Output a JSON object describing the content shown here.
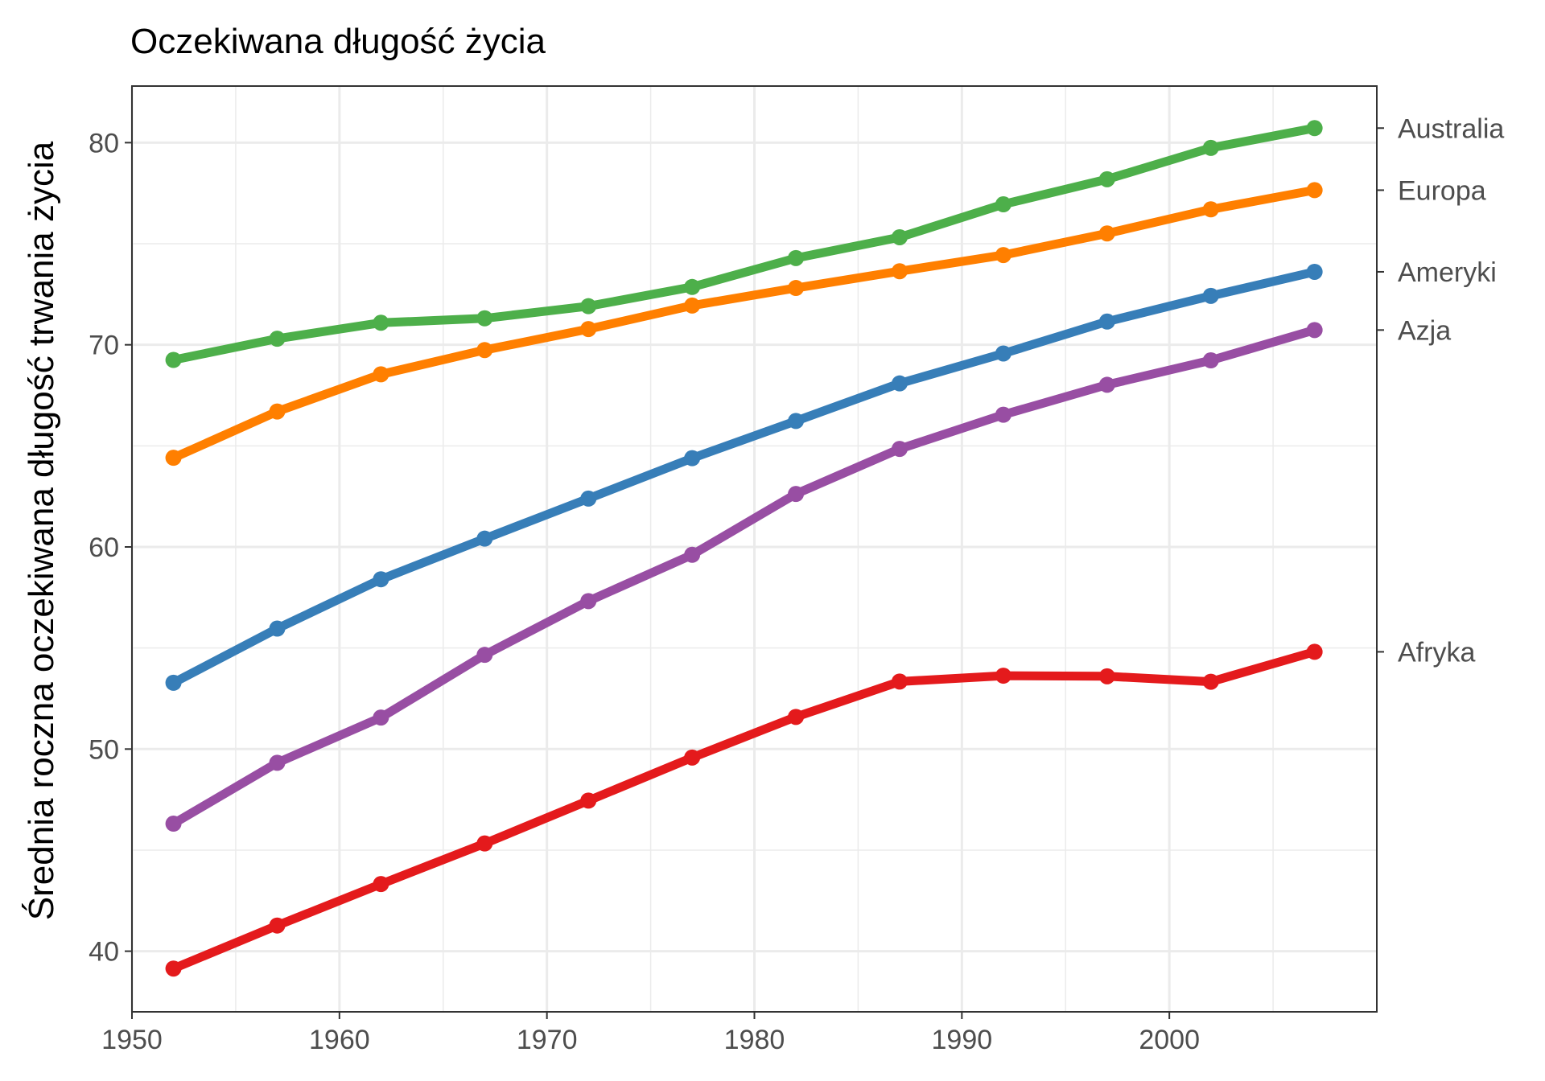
{
  "chart_data": {
    "type": "line",
    "title": "Oczekiwana długość życia",
    "xlabel": "",
    "ylabel": "Średnia roczna oczekiwana długość trwania życia",
    "x": [
      1952,
      1957,
      1962,
      1967,
      1972,
      1977,
      1982,
      1987,
      1992,
      1997,
      2002,
      2007
    ],
    "xlim": [
      1950,
      2010
    ],
    "ylim": [
      37,
      82.8
    ],
    "x_ticks": [
      1950,
      1960,
      1970,
      1980,
      1990,
      2000
    ],
    "x_tick_labels": [
      "1950",
      "1960",
      "1970",
      "1980",
      "1990",
      "2000"
    ],
    "y_ticks": [
      40,
      50,
      60,
      70,
      80
    ],
    "y_tick_labels": [
      "40",
      "50",
      "60",
      "70",
      "80"
    ],
    "grid": true,
    "legend": "none (series labelled on secondary right axis)",
    "series": [
      {
        "name": "Australia",
        "color": "#4daf4a",
        "values": [
          69.25,
          70.3,
          71.09,
          71.31,
          71.91,
          72.86,
          74.29,
          75.32,
          76.95,
          78.19,
          79.74,
          80.72
        ]
      },
      {
        "name": "Europa",
        "color": "#ff7f00",
        "values": [
          64.41,
          66.7,
          68.54,
          69.74,
          70.78,
          71.94,
          72.81,
          73.64,
          74.44,
          75.51,
          76.7,
          77.65
        ]
      },
      {
        "name": "Ameryki",
        "color": "#377eb8",
        "values": [
          53.28,
          55.96,
          58.4,
          60.41,
          62.39,
          64.39,
          66.23,
          68.09,
          69.57,
          71.15,
          72.42,
          73.61
        ]
      },
      {
        "name": "Azja",
        "color": "#984ea3",
        "values": [
          46.31,
          49.32,
          51.56,
          54.66,
          57.32,
          59.61,
          62.62,
          64.85,
          66.54,
          68.02,
          69.23,
          70.73
        ]
      },
      {
        "name": "Afryka",
        "color": "#e41a1c",
        "values": [
          39.14,
          41.27,
          43.32,
          45.33,
          47.45,
          49.58,
          51.59,
          53.34,
          53.63,
          53.6,
          53.33,
          54.81
        ]
      }
    ]
  }
}
